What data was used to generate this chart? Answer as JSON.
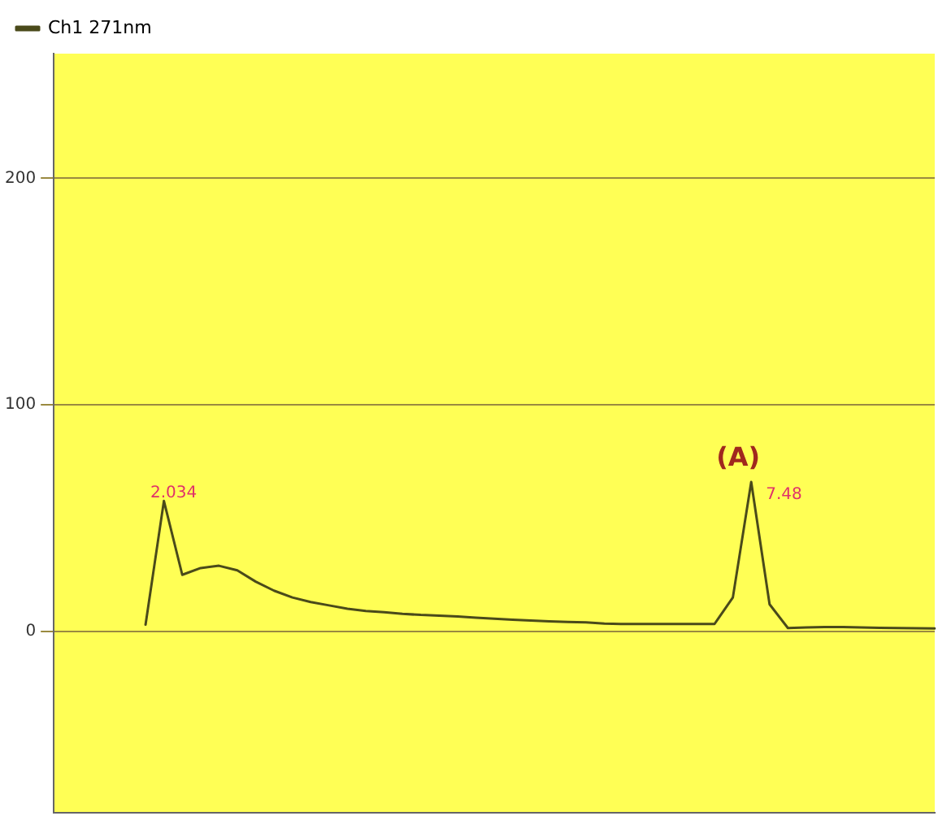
{
  "chart_data": {
    "type": "line",
    "categories": [
      null,
      null,
      null,
      null,
      null,
      null,
      null,
      null,
      null,
      null,
      null,
      null,
      null,
      null,
      null,
      null,
      null,
      null,
      null,
      null,
      null,
      null,
      null,
      null,
      null,
      null,
      null,
      null,
      null,
      null,
      null,
      null,
      null,
      null,
      null,
      null,
      null,
      null,
      null,
      null,
      null,
      null,
      null,
      null,
      null,
      null,
      null,
      null,
      null
    ],
    "ylim": [
      -80,
      255
    ],
    "yticks": [
      0,
      100,
      200
    ],
    "grid": "y",
    "tick_labels": "y",
    "legend": "top left",
    "marker": "none",
    "line_style": "solid",
    "series": [
      {
        "name": "Ch1 271nm",
        "color": "#4a4a1a",
        "values": [
          null,
          null,
          null,
          null,
          null,
          3,
          57.6,
          25,
          28,
          29,
          27,
          22,
          18,
          15,
          13,
          11.5,
          10,
          9,
          8.5,
          7.8,
          7.3,
          7,
          6.6,
          6.1,
          5.6,
          5.2,
          4.8,
          4.5,
          4.2,
          4,
          3.5,
          3.3,
          3.3,
          3.3,
          3.3,
          3.3,
          3.3,
          15,
          66,
          12,
          1.5,
          1.8,
          2,
          2,
          1.8,
          1.6,
          1.5,
          1.4,
          1.3
        ]
      }
    ],
    "annotations": [
      "2.034",
      "7.48",
      "(A)"
    ]
  }
}
